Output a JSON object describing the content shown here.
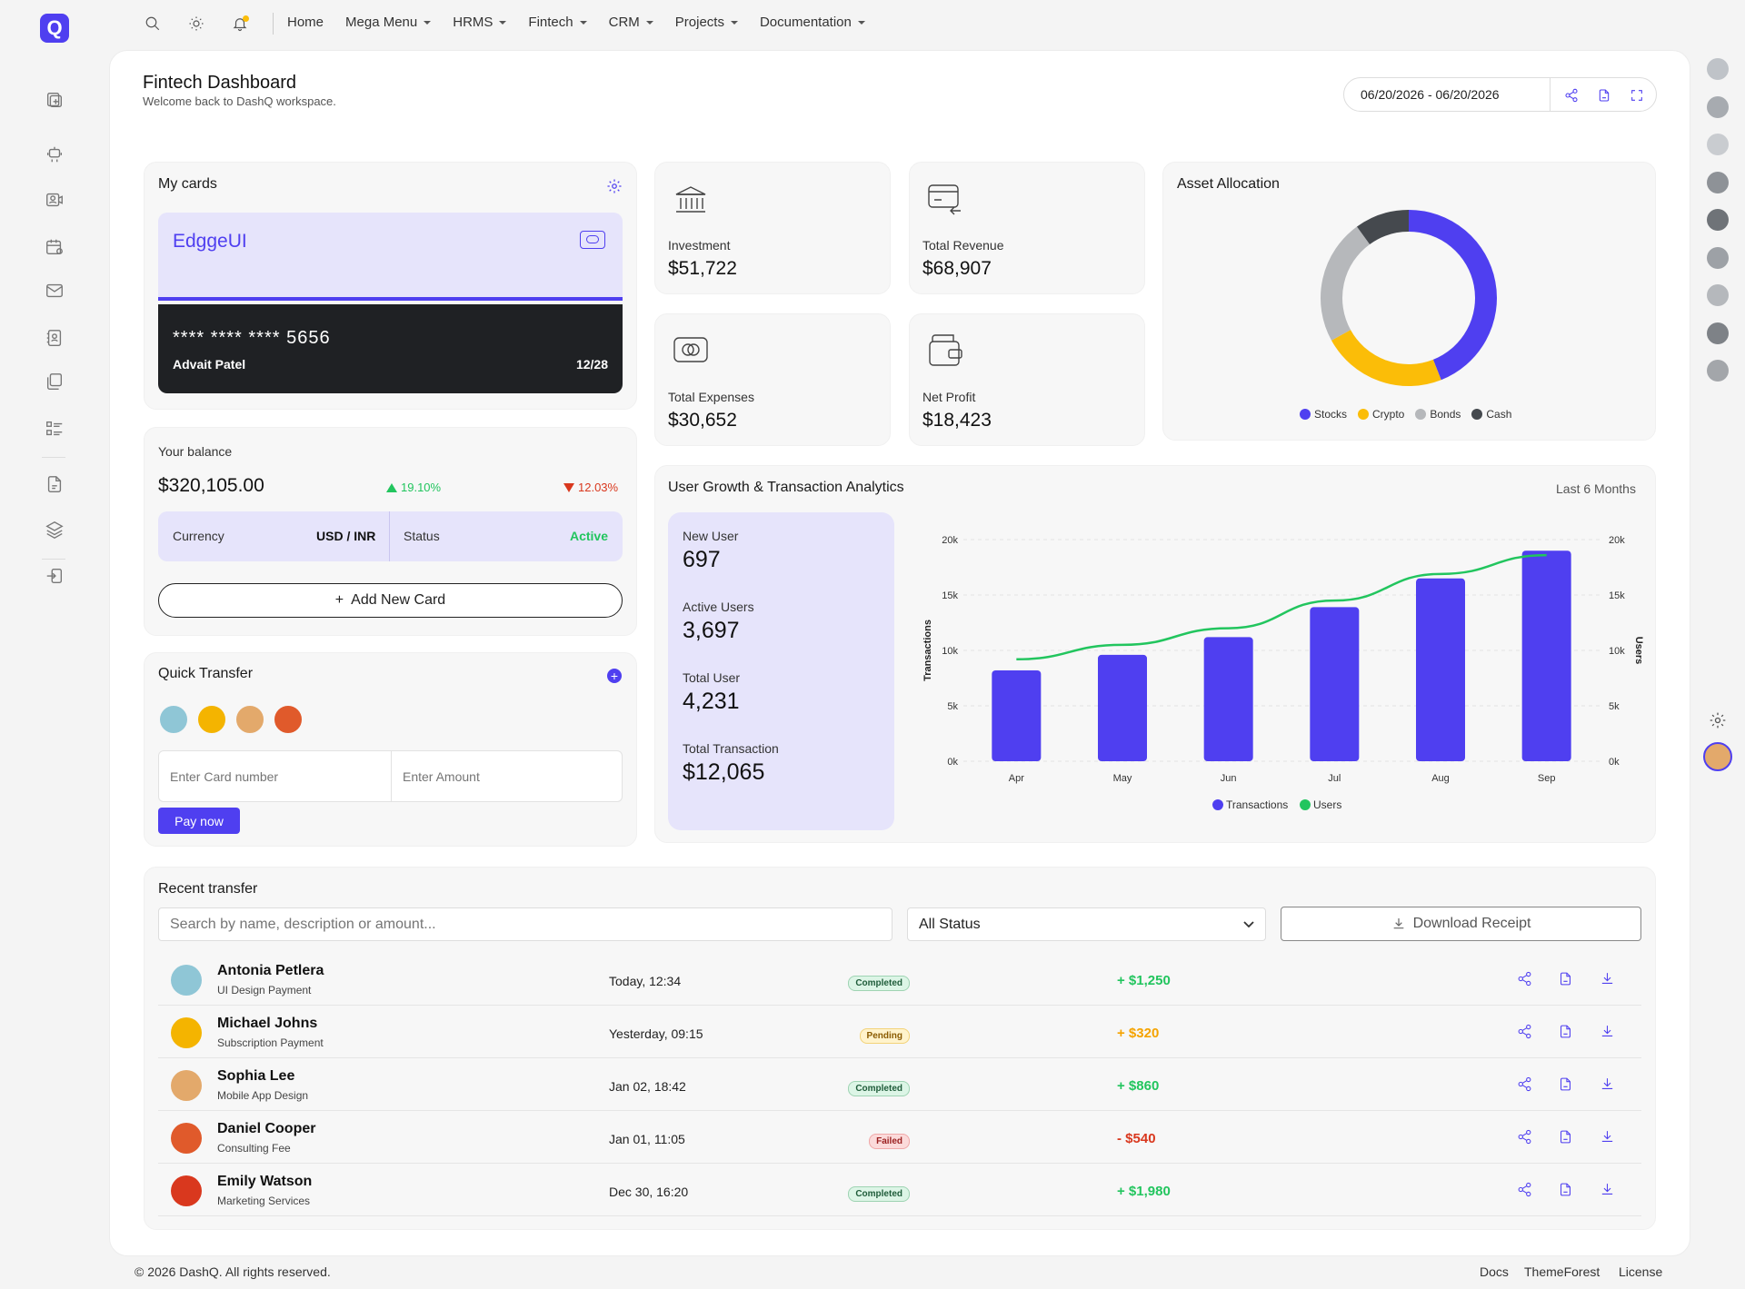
{
  "brand": {
    "logo_letter": "Q"
  },
  "nav": {
    "icons": [
      "search-icon",
      "sun-icon",
      "bell-icon"
    ],
    "menu": [
      {
        "label": "Home",
        "dropdown": false
      },
      {
        "label": "Mega Menu",
        "dropdown": true
      },
      {
        "label": "HRMS",
        "dropdown": true
      },
      {
        "label": "Fintech",
        "dropdown": true
      },
      {
        "label": "CRM",
        "dropdown": true
      },
      {
        "label": "Projects",
        "dropdown": true
      },
      {
        "label": "Documentation",
        "dropdown": true
      }
    ]
  },
  "sidebar": {
    "icons": [
      "add-page-icon",
      "robot-icon",
      "video-contact-icon",
      "calendar-icon",
      "mail-icon",
      "contacts-book-icon",
      "files-icon",
      "list-icon",
      "document-icon",
      "layers-icon",
      "login-icon"
    ]
  },
  "header": {
    "title": "Fintech Dashboard",
    "subtitle": "Welcome back to DashQ workspace.",
    "date_range": "06/20/2026 - 06/20/2026"
  },
  "my_cards": {
    "title": "My cards",
    "card_brand": "EdggeUI",
    "card_number": "**** **** **** 5656",
    "holder": "Advait Patel",
    "expiry": "12/28"
  },
  "stats": [
    {
      "label": "Investment",
      "value": "$51,722",
      "icon": "bank-icon"
    },
    {
      "label": "Total Revenue",
      "value": "$68,907",
      "icon": "card-receive-icon"
    },
    {
      "label": "Total Expenses",
      "value": "$30,652",
      "icon": "cash-icon"
    },
    {
      "label": "Net Profit",
      "value": "$18,423",
      "icon": "wallet-icon"
    }
  ],
  "balance": {
    "title": "Your balance",
    "amount": "$320,105.00",
    "up": "19.10%",
    "down": "12.03%",
    "currency_label": "Currency",
    "currency_value": "USD / INR",
    "status_label": "Status",
    "status_value": "Active",
    "add_card": "Add New Card"
  },
  "quick_transfer": {
    "title": "Quick Transfer",
    "card_placeholder": "Enter Card number",
    "amount_placeholder": "Enter Amount",
    "pay_label": "Pay now"
  },
  "asset_allocation": {
    "title": "Asset Allocation",
    "legend": [
      {
        "name": "Stocks",
        "color": "#4f3ff0"
      },
      {
        "name": "Crypto",
        "color": "#fbbd08"
      },
      {
        "name": "Bonds",
        "color": "#b6b8bb"
      },
      {
        "name": "Cash",
        "color": "#45494e"
      }
    ]
  },
  "analytics": {
    "title": "User Growth & Transaction Analytics",
    "period": "Last 6 Months",
    "metrics": [
      {
        "label": "New User",
        "value": "697"
      },
      {
        "label": "Active Users",
        "value": "3,697"
      },
      {
        "label": "Total User",
        "value": "4,231"
      },
      {
        "label": "Total Transaction",
        "value": "$12,065"
      }
    ]
  },
  "chart_data": [
    {
      "type": "pie",
      "donut": true,
      "title": "Asset Allocation",
      "categories": [
        "Stocks",
        "Crypto",
        "Bonds",
        "Cash"
      ],
      "values": [
        44,
        23,
        23,
        10
      ],
      "colors": [
        "#4f3ff0",
        "#fbbd08",
        "#b6b8bb",
        "#45494e"
      ],
      "legend": "bottom"
    },
    {
      "type": "bar",
      "categories": [
        "Apr",
        "May",
        "Jun",
        "Jul",
        "Aug",
        "Sep"
      ],
      "series": [
        {
          "name": "Transactions",
          "type": "bar",
          "values": [
            8200,
            9600,
            11200,
            13900,
            16500,
            19000
          ],
          "color": "#4f3ff0",
          "axis": "left"
        },
        {
          "name": "Users",
          "type": "line",
          "values": [
            9200,
            10500,
            12000,
            14500,
            16900,
            18600
          ],
          "color": "#22c55e",
          "axis": "right"
        }
      ],
      "ylabel": "Transactions",
      "y2label": "Users",
      "yticks": [
        "0k",
        "5k",
        "10k",
        "15k",
        "20k"
      ],
      "ylim": [
        0,
        20000
      ],
      "grid": true,
      "legend": "bottom"
    }
  ],
  "recent": {
    "title": "Recent transfer",
    "search_placeholder": "Search by name, description or amount...",
    "status_filter": "All Status",
    "download_label": "Download Receipt",
    "rows": [
      {
        "name": "Antonia Petlera",
        "desc": "UI Design Payment",
        "time": "Today, 12:34",
        "status": "Completed",
        "amount": "+ $1,250",
        "kind": "ok"
      },
      {
        "name": "Michael Johns",
        "desc": "Subscription Payment",
        "time": "Yesterday, 09:15",
        "status": "Pending",
        "amount": "+ $320",
        "kind": "pend"
      },
      {
        "name": "Sophia Lee",
        "desc": "Mobile App Design",
        "time": "Jan 02, 18:42",
        "status": "Completed",
        "amount": "+ $860",
        "kind": "ok"
      },
      {
        "name": "Daniel Cooper",
        "desc": "Consulting Fee",
        "time": "Jan 01, 11:05",
        "status": "Failed",
        "amount": "- $540",
        "kind": "fail"
      },
      {
        "name": "Emily Watson",
        "desc": "Marketing Services",
        "time": "Dec 30, 16:20",
        "status": "Completed",
        "amount": "+ $1,980",
        "kind": "ok"
      }
    ]
  },
  "footer": {
    "copyright": "© 2026 DashQ. All rights reserved.",
    "links": [
      "Docs",
      "ThemeForest",
      "License"
    ]
  },
  "colors": {
    "accent": "#4f3ff0",
    "success": "#22c55e",
    "danger": "#d9381e",
    "warning": "#f5a300"
  }
}
